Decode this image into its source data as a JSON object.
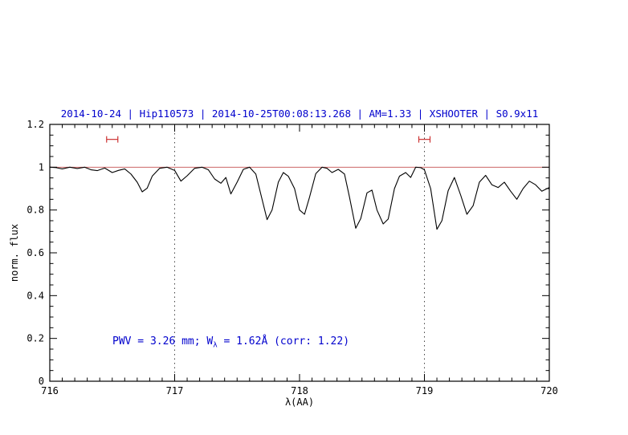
{
  "annotation": {
    "prefix": "PWV = 3.26 mm; W",
    "sub": "λ",
    "suffix": " = 1.62Å (corr: 1.22)"
  },
  "chart_data": {
    "type": "line",
    "title": "2014-10-24 | Hip110573 | 2014-10-25T00:08:13.268 | AM=1.33 | XSHOOTER | S0.9x11",
    "xlabel": "λ(AA)",
    "ylabel": "norm. flux",
    "xlim": [
      716,
      720
    ],
    "ylim": [
      0,
      1.2
    ],
    "xticks": [
      716,
      717,
      718,
      719,
      720
    ],
    "xtick_labels": [
      "716",
      "717",
      "718",
      "719",
      "720"
    ],
    "yticks": [
      0,
      0.2,
      0.4,
      0.6,
      0.8,
      1,
      1.2
    ],
    "ytick_labels": [
      "0",
      "0.2",
      "0.4",
      "0.6",
      "0.8",
      "1",
      "1.2"
    ],
    "x_minor_step": 0.1,
    "y_minor_step": 0.05,
    "grid": false,
    "reference_line_y": 1.0,
    "dotted_vlines": [
      717,
      719
    ],
    "error_markers": [
      {
        "x": 716.5,
        "y": 1.13,
        "halfwidth": 0.045
      },
      {
        "x": 719.0,
        "y": 1.13,
        "halfwidth": 0.045
      }
    ],
    "annotation_text": "PWV = 3.26 mm; Wλ = 1.62Å (corr: 1.22)",
    "colors": {
      "title": "#0000cd",
      "annotation": "#0000cd",
      "reference_line": "#cc6666",
      "error_marker": "#cc3333",
      "vline": "#444444",
      "series": "#000000",
      "axis": "#000000"
    },
    "series": [
      {
        "name": "telluric-spectrum",
        "color": "#000000",
        "x": [
          716.0,
          716.05,
          716.1,
          716.16,
          716.22,
          716.28,
          716.33,
          716.38,
          716.44,
          716.5,
          716.55,
          716.6,
          716.65,
          716.7,
          716.74,
          716.78,
          716.82,
          716.88,
          716.94,
          717.0,
          717.05,
          717.1,
          717.16,
          717.22,
          717.27,
          717.32,
          717.37,
          717.41,
          717.45,
          717.5,
          717.55,
          717.6,
          717.65,
          717.7,
          717.74,
          717.78,
          717.83,
          717.87,
          717.91,
          717.96,
          718.0,
          718.04,
          718.08,
          718.13,
          718.18,
          718.22,
          718.26,
          718.31,
          718.36,
          718.4,
          718.45,
          718.49,
          718.54,
          718.58,
          718.62,
          718.67,
          718.71,
          718.76,
          718.8,
          718.85,
          718.89,
          718.93,
          718.97,
          719.0,
          719.05,
          719.1,
          719.14,
          719.19,
          719.24,
          719.29,
          719.34,
          719.39,
          719.44,
          719.49,
          719.54,
          719.59,
          719.64,
          719.69,
          719.74,
          719.79,
          719.84,
          719.89,
          719.94,
          720.0
        ],
        "y": [
          1.0,
          0.998,
          0.992,
          1.0,
          0.994,
          1.0,
          0.988,
          0.984,
          0.996,
          0.975,
          0.985,
          0.992,
          0.968,
          0.93,
          0.885,
          0.902,
          0.958,
          0.995,
          1.0,
          0.985,
          0.935,
          0.96,
          0.995,
          1.0,
          0.988,
          0.945,
          0.925,
          0.952,
          0.875,
          0.93,
          0.99,
          1.0,
          0.968,
          0.85,
          0.755,
          0.8,
          0.93,
          0.975,
          0.958,
          0.9,
          0.8,
          0.78,
          0.86,
          0.97,
          1.0,
          0.995,
          0.975,
          0.99,
          0.968,
          0.86,
          0.715,
          0.76,
          0.88,
          0.893,
          0.8,
          0.735,
          0.758,
          0.9,
          0.958,
          0.975,
          0.952,
          1.0,
          0.998,
          0.988,
          0.9,
          0.71,
          0.75,
          0.89,
          0.952,
          0.87,
          0.78,
          0.82,
          0.93,
          0.962,
          0.918,
          0.905,
          0.93,
          0.888,
          0.85,
          0.9,
          0.935,
          0.918,
          0.888,
          0.905
        ]
      }
    ]
  }
}
